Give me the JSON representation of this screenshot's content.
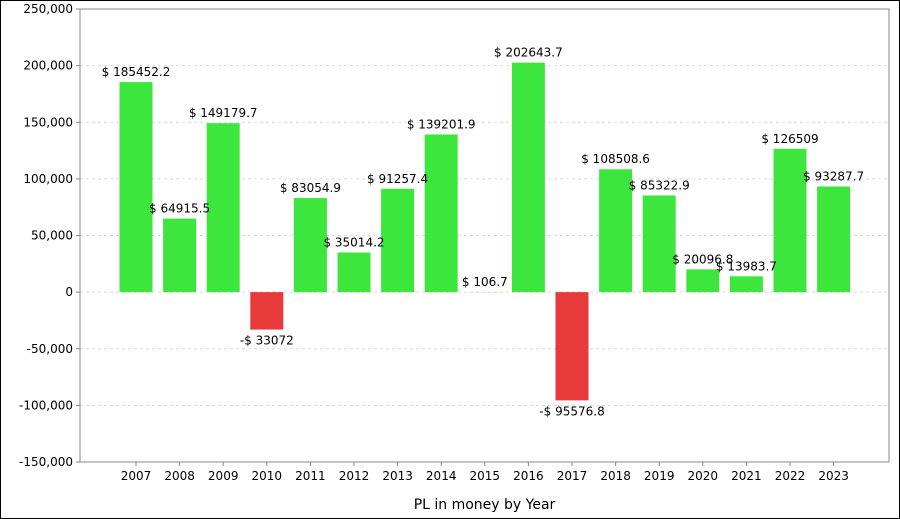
{
  "chart_data": {
    "type": "bar",
    "title": "",
    "xlabel": "PL in money by Year",
    "ylabel": "",
    "categories": [
      "2007",
      "2008",
      "2009",
      "2010",
      "2011",
      "2012",
      "2013",
      "2014",
      "2015",
      "2016",
      "2017",
      "2018",
      "2019",
      "2020",
      "2021",
      "2022",
      "2023"
    ],
    "values": [
      185452.2,
      64915.5,
      149179.7,
      -33072,
      83054.9,
      35014.2,
      91257.4,
      139201.9,
      106.7,
      202643.7,
      -95576.8,
      108508.6,
      85322.9,
      20096.8,
      13983.7,
      126509,
      93287.7
    ],
    "data_labels": [
      "$ 185452.2",
      "$ 64915.5",
      "$ 149179.7",
      "-$ 33072",
      "$ 83054.9",
      "$ 35014.2",
      "$ 91257.4",
      "$ 139201.9",
      "$ 106.7",
      "$ 202643.7",
      "-$ 95576.8",
      "$ 108508.6",
      "$ 85322.9",
      "$ 20096.8",
      "$ 13983.7",
      "$ 126509",
      "$ 93287.7"
    ],
    "ylim": [
      -150000,
      250000
    ],
    "yticks": [
      -150000,
      -100000,
      -50000,
      0,
      50000,
      100000,
      150000,
      200000,
      250000
    ],
    "ytick_labels": [
      "-150,000",
      "-100,000",
      "-50,000",
      "0",
      "50,000",
      "100,000",
      "150,000",
      "200,000",
      "250,000"
    ],
    "grid": true,
    "colors": {
      "positive": "#3de63d",
      "negative": "#e83a3a",
      "grid": "#d9d9d9",
      "axis": "#888888"
    }
  }
}
